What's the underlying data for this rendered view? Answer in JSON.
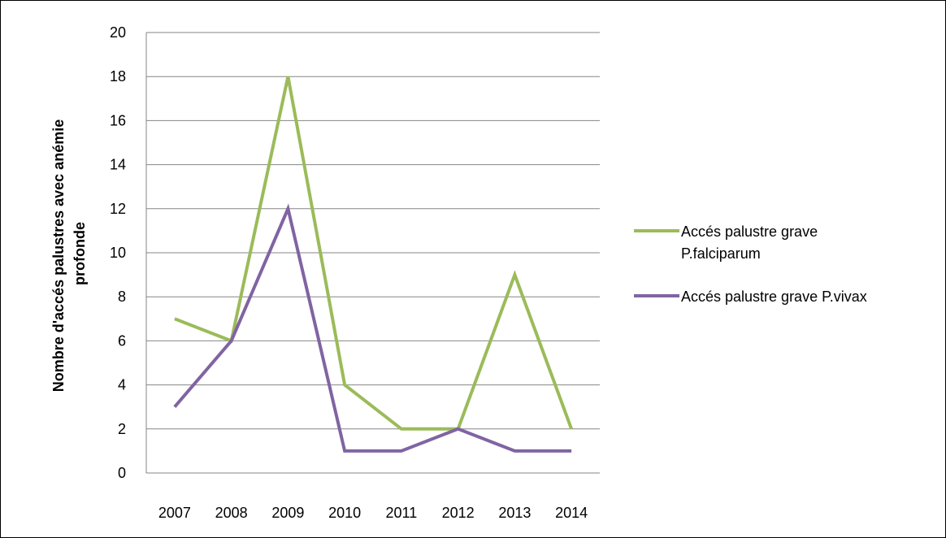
{
  "chart_data": {
    "type": "line",
    "categories": [
      "2007",
      "2008",
      "2009",
      "2010",
      "2011",
      "2012",
      "2013",
      "2014"
    ],
    "series": [
      {
        "name": "Accés palustre grave P.falciparum",
        "values": [
          7,
          6,
          18,
          4,
          2,
          2,
          9,
          2
        ],
        "color": "#9BBB59"
      },
      {
        "name": "Accés palustre grave P.vivax",
        "values": [
          3,
          6,
          12,
          1,
          1,
          2,
          1,
          1
        ],
        "color": "#8064A2"
      }
    ],
    "title": "",
    "xlabel": "",
    "ylabel": "Nombre d'accés palustres avec anémie profonde",
    "ylabel_lines": [
      "Nombre d'accés palustres avec anémie",
      "profonde"
    ],
    "ylim": [
      0,
      20
    ],
    "yticks": [
      0,
      2,
      4,
      6,
      8,
      10,
      12,
      14,
      16,
      18,
      20
    ],
    "grid": true,
    "gridline_color": "#868686",
    "legend_placement": "right",
    "legend_lines": [
      [
        "Accés palustre grave",
        "P.falciparum"
      ],
      [
        "Accés palustre grave P.vivax"
      ]
    ]
  }
}
